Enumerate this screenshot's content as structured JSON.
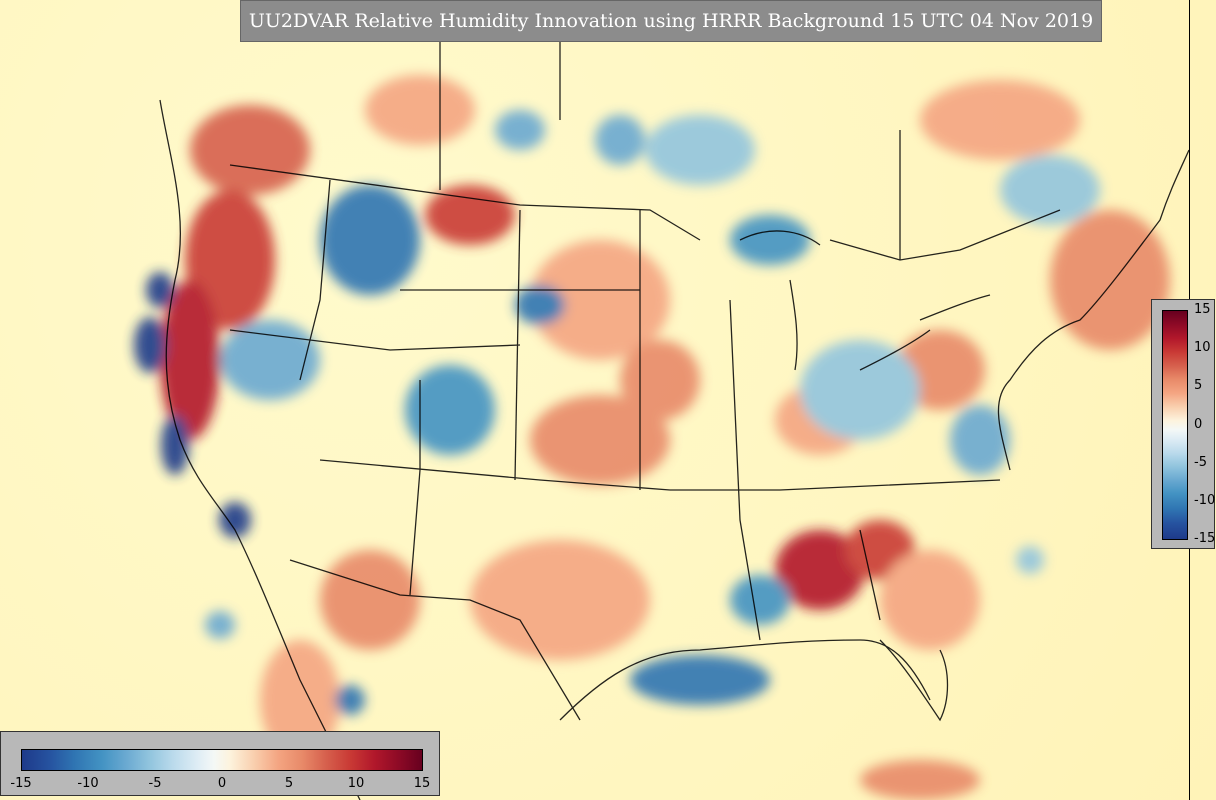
{
  "title": "UU2DVAR Relative Humidity Innovation using HRRR Background 15 UTC 04 Nov 2019",
  "legend_vertical": {
    "labels": [
      "15",
      "10",
      "5",
      "0",
      "-5",
      "-10",
      "-15"
    ]
  },
  "legend_horizontal": {
    "labels": [
      "-15",
      "-10",
      "-5",
      "0",
      "5",
      "10",
      "15"
    ]
  },
  "colors": {
    "ocean": "#fff6c0",
    "strong_positive": "#b2182b",
    "positive": "#f4a582",
    "negative": "#92c5de",
    "strong_negative": "#1e3a8a",
    "panel": "#b8b8b8",
    "title_bg": "#8c8c8c"
  }
}
